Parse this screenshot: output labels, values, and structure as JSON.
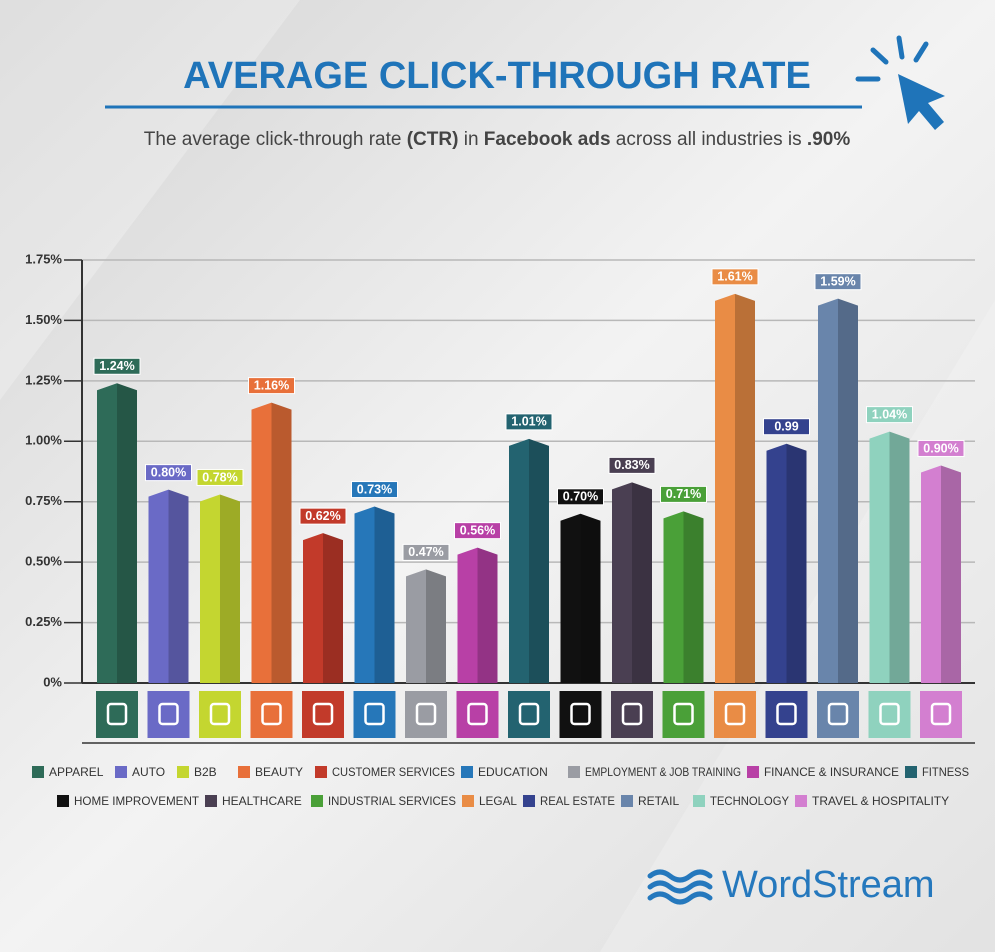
{
  "chart_data": {
    "type": "bar",
    "title": "AVERAGE CLICK-THROUGH RATE",
    "subtitle": [
      {
        "text": "The average click-through rate ",
        "bold": false
      },
      {
        "text": "(CTR)",
        "bold": true
      },
      {
        "text": " in ",
        "bold": false
      },
      {
        "text": "Facebook ads",
        "bold": true
      },
      {
        "text": " across all industries is ",
        "bold": false
      },
      {
        "text": ".90%",
        "bold": true
      }
    ],
    "categories": [
      "APPAREL",
      "AUTO",
      "B2B",
      "BEAUTY",
      "CUSTOMER SERVICES",
      "EDUCATION",
      "EMPLOYMENT & JOB TRAINING",
      "FINANCE & INSURANCE",
      "FITNESS",
      "HOME IMPROVEMENT",
      "HEALTHCARE",
      "INDUSTRIAL SERVICES",
      "LEGAL",
      "REAL ESTATE",
      "RETAIL",
      "TECHNOLOGY",
      "TRAVEL & HOSPITALITY"
    ],
    "values": [
      1.24,
      0.8,
      0.78,
      1.16,
      0.62,
      0.73,
      0.47,
      0.56,
      1.01,
      0.7,
      0.83,
      0.71,
      1.61,
      0.99,
      1.59,
      1.04,
      0.9
    ],
    "value_labels": [
      "1.24%",
      "0.80%",
      "0.78%",
      "1.16%",
      "0.62%",
      "0.73%",
      "0.47%",
      "0.56%",
      "1.01%",
      "0.70%",
      "0.83%",
      "0.71%",
      "1.61%",
      "0.99",
      "1.59%",
      "1.04%",
      "0.90%"
    ],
    "colors": [
      "#2e6b58",
      "#6a6ac6",
      "#c4d630",
      "#e8703a",
      "#c23a2a",
      "#2677b9",
      "#9a9ca3",
      "#b840a6",
      "#236370",
      "#111111",
      "#4a3f52",
      "#4aa038",
      "#e98c45",
      "#34428e",
      "#6985ab",
      "#8fd2be",
      "#d37fd0"
    ],
    "ylim": [
      0,
      1.75
    ],
    "yticks": [
      {
        "value": 0,
        "label": "0%"
      },
      {
        "value": 0.25,
        "label": "0.25%"
      },
      {
        "value": 0.5,
        "label": "0.50%"
      },
      {
        "value": 0.75,
        "label": "0.75%"
      },
      {
        "value": 1,
        "label": "1.00%"
      },
      {
        "value": 1.25,
        "label": "1.25%"
      },
      {
        "value": 1.5,
        "label": "1.50%"
      },
      {
        "value": 1.75,
        "label": "1.75%"
      }
    ],
    "grid": true,
    "logo": "WordStream"
  }
}
